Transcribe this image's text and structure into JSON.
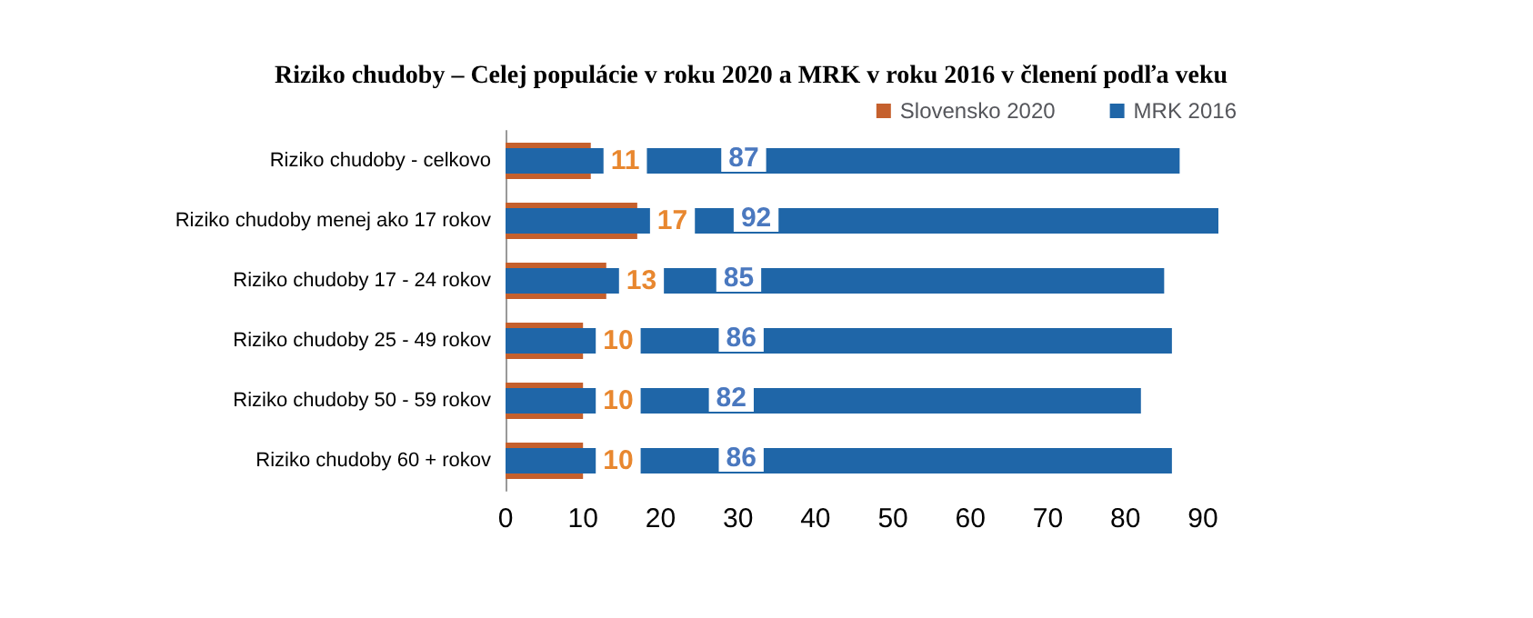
{
  "chart_data": {
    "type": "bar",
    "orientation": "horizontal",
    "title": "Riziko chudoby – Celej populácie v roku 2020 a MRK v roku 2016 v členení podľa veku",
    "categories": [
      "Riziko chudoby - celkovo",
      "Riziko chudoby menej ako 17 rokov",
      "Riziko chudoby 17 - 24 rokov",
      "Riziko chudoby 25 - 49 rokov",
      "Riziko chudoby 50 - 59 rokov",
      "Riziko chudoby 60 + rokov"
    ],
    "series": [
      {
        "name": "Slovensko 2020",
        "color": "#c5602d",
        "values": [
          11,
          17,
          13,
          10,
          10,
          10
        ]
      },
      {
        "name": "MRK 2016",
        "color": "#1f66a8",
        "values": [
          87,
          92,
          85,
          86,
          82,
          86
        ]
      }
    ],
    "xlim": [
      0,
      92
    ],
    "xticks": [
      0,
      10,
      20,
      30,
      40,
      50,
      60,
      70,
      80,
      90
    ],
    "grid": false,
    "legend": "top right",
    "data_labels": true
  }
}
